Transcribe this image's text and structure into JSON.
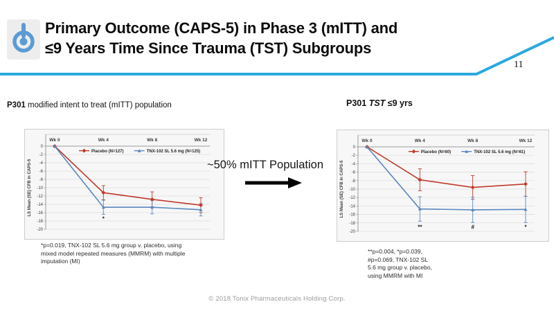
{
  "slide": {
    "page_number": "11",
    "footer": "© 2018 Tonix Pharmaceuticals Holding Corp."
  },
  "header": {
    "title_line1": "Primary Outcome (CAPS-5) in Phase 3 (mITT) and",
    "title_line2": "≤9 Years Time Since Trauma (TST) Subgroups",
    "accent_color": "#2aa8e0",
    "logo_color": "#5b9bd5",
    "logo_icon": "power-icon"
  },
  "left_panel": {
    "title_prefix": "P301",
    "title_rest": " modified intent to treat (mITT) population",
    "footnote_lines": [
      "*p=0.019, TNX-102 SL 5.6 mg group v. placebo, using",
      "mixed model repeated measures (MMRM) with multiple",
      "imputation (MI)"
    ]
  },
  "middle": {
    "label": "~50% mITT Population",
    "arrow_icon": "arrow-right-icon",
    "arrow_color": "#000000"
  },
  "right_panel": {
    "title_prefix": "P301",
    "title_emphasis": "TST",
    "title_rest": " ≤9 yrs",
    "footnote_lines": [
      "**p=0.004, *p=0.039,",
      "#p=0.069, TNX-102 SL",
      "5.6 mg group v. placebo,",
      "using MMRM with MI"
    ]
  },
  "chart_data": [
    {
      "id": "mitt",
      "type": "line",
      "title": "P301 modified intent to treat (mITT) population",
      "categories": [
        "Wk 0",
        "Wk 4",
        "Wk 8",
        "Wk 12"
      ],
      "xlabel": "",
      "ylabel": "LS Mean (SE) CFB in CAPS-5",
      "ylim": [
        -20,
        0
      ],
      "ytick_step": 2,
      "grid": true,
      "legend_position": "top-inside",
      "series": [
        {
          "name": "Placebo (N=127)",
          "color": "#c0392b",
          "marker": "diamond",
          "values": [
            0,
            -11.2,
            -12.8,
            -14.2
          ],
          "se": [
            0,
            1.7,
            1.8,
            1.8
          ]
        },
        {
          "name": "TNX-102 SL 5.6 mg (N=125)",
          "color": "#5b87be",
          "marker": "triangle",
          "values": [
            0,
            -14.7,
            -14.7,
            -15.3
          ],
          "se": [
            0,
            1.7,
            1.6,
            1.5
          ]
        }
      ],
      "annotations": [
        {
          "x": 1,
          "y": -17.5,
          "text": "*"
        }
      ]
    },
    {
      "id": "tst9",
      "type": "line",
      "title": "P301 TST ≤9 yrs",
      "categories": [
        "Wk 0",
        "Wk 4",
        "Wk 8",
        "Wk 12"
      ],
      "xlabel": "",
      "ylabel": "LS Mean (SE) CFB in CAPS-5",
      "ylim": [
        -20,
        0
      ],
      "ytick_step": 2,
      "grid": true,
      "legend_position": "top-inside",
      "series": [
        {
          "name": "Placebo (N=60)",
          "color": "#c0392b",
          "marker": "diamond",
          "values": [
            0,
            -7.8,
            -9.6,
            -8.8
          ],
          "se": [
            0,
            2.6,
            2.8,
            2.9
          ]
        },
        {
          "name": "TNX-102 SL 5.6 mg (N=61)",
          "color": "#5b87be",
          "marker": "triangle",
          "values": [
            0,
            -14.7,
            -14.9,
            -14.8
          ],
          "se": [
            0,
            2.9,
            3.0,
            3.1
          ]
        }
      ],
      "annotations": [
        {
          "x": 1,
          "y": -19,
          "text": "**"
        },
        {
          "x": 2,
          "y": -19,
          "text": "#"
        },
        {
          "x": 3,
          "y": -19,
          "text": "*"
        }
      ]
    }
  ]
}
